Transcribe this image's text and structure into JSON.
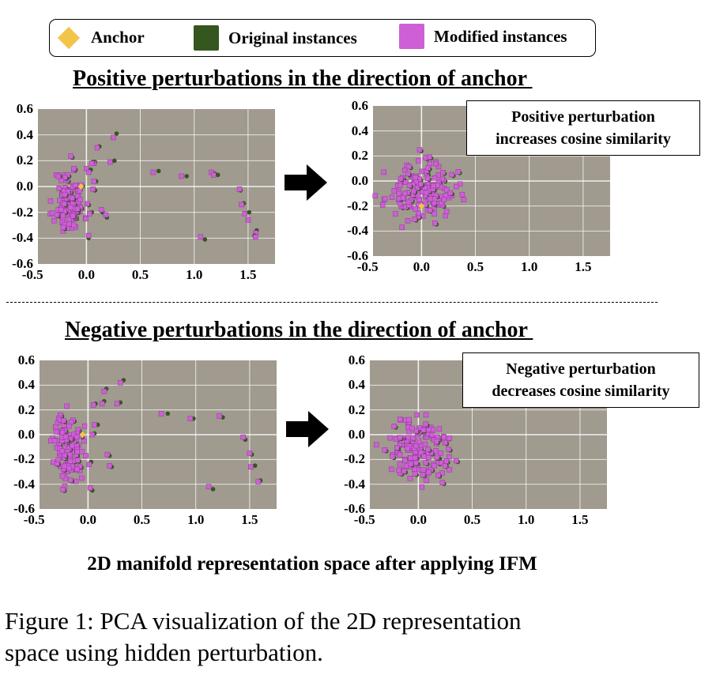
{
  "legend": {
    "anchor": "Anchor",
    "original": "Original instances",
    "modified": "Modified instances"
  },
  "colors": {
    "anchor": "#f2c54a",
    "original": "#35561f",
    "modified": "#cf5fd6",
    "plot_bg": "#a09a8f",
    "grid": "#ffffff"
  },
  "sections": {
    "positive_title": "Positive perturbations in the direction of anchor ",
    "negative_title": "Negative perturbations in the direction of anchor "
  },
  "annotations": {
    "positive": [
      "Positive perturbation",
      "increases cosine similarity"
    ],
    "negative": [
      "Negative perturbation",
      "decreases cosine similarity"
    ]
  },
  "bottom_title": "2D manifold representation space after applying IFM",
  "caption": [
    "Figure 1: PCA visualization of the 2D representation",
    "space using hidden perturbation."
  ],
  "chart_data": [
    {
      "id": "pos-before",
      "type": "scatter",
      "title": "Positive perturbations in the direction of anchor",
      "xlim": [
        -0.45,
        1.75
      ],
      "ylim": [
        -0.6,
        0.6
      ],
      "xticks": [
        -0.5,
        0.0,
        0.5,
        1.0,
        1.5
      ],
      "yticks": [
        0.6,
        0.4,
        0.2,
        0.0,
        -0.2,
        -0.4,
        -0.6
      ],
      "xtick_labels": [
        "-0.5",
        "0.0",
        "0.5",
        "1.0",
        "1.5"
      ],
      "ytick_labels": [
        "0.6",
        "0.4",
        "0.2",
        "0.0",
        "-0.2",
        "-0.4",
        "-0.6"
      ],
      "anchor": [
        -0.05,
        0.0
      ],
      "cluster": {
        "cx": -0.16,
        "cy": -0.12,
        "sx": 0.07,
        "sy": 0.13,
        "n": 110,
        "seed": 11
      },
      "pairs": [
        [
          0.25,
          0.38,
          0.28,
          0.41
        ],
        [
          0.1,
          0.3,
          0.12,
          0.31
        ],
        [
          0.22,
          0.19,
          0.26,
          0.2
        ],
        [
          0.07,
          0.18,
          0.08,
          0.19
        ],
        [
          0.62,
          0.11,
          0.67,
          0.12
        ],
        [
          0.88,
          0.08,
          0.93,
          0.08
        ],
        [
          1.16,
          0.11,
          1.19,
          0.1
        ],
        [
          1.18,
          0.09,
          1.22,
          0.09
        ],
        [
          1.42,
          -0.02,
          1.43,
          -0.03
        ],
        [
          1.44,
          -0.14,
          1.46,
          -0.13
        ],
        [
          1.47,
          -0.21,
          1.51,
          -0.2
        ],
        [
          1.5,
          -0.26,
          1.5,
          -0.26
        ],
        [
          1.57,
          -0.36,
          1.58,
          -0.34
        ],
        [
          1.57,
          -0.39,
          1.56,
          -0.38
        ],
        [
          1.06,
          -0.39,
          1.1,
          -0.41
        ],
        [
          0.02,
          -0.38,
          0.02,
          -0.4
        ],
        [
          0.05,
          0.18,
          0.06,
          0.19
        ],
        [
          0.02,
          0.11,
          0.04,
          0.13
        ],
        [
          0.07,
          0.04,
          0.09,
          0.04
        ],
        [
          0.06,
          -0.02,
          0.08,
          -0.03
        ],
        [
          0.14,
          -0.18,
          0.15,
          -0.2
        ],
        [
          0.18,
          -0.22,
          0.19,
          -0.24
        ],
        [
          0.03,
          -0.21,
          0.05,
          -0.2
        ]
      ]
    },
    {
      "id": "pos-after",
      "type": "scatter",
      "annotation": "Positive perturbation increases cosine similarity",
      "xlim": [
        -0.45,
        1.75
      ],
      "ylim": [
        -0.6,
        0.6
      ],
      "xticks": [
        -0.5,
        0.0,
        0.5,
        1.0,
        1.5
      ],
      "yticks": [
        0.6,
        0.4,
        0.2,
        0.0,
        -0.2,
        -0.4,
        -0.6
      ],
      "xtick_labels": [
        "-0.5",
        "0.0",
        "0.5",
        "1.0",
        "1.5"
      ],
      "ytick_labels": [
        "0.6",
        "0.4",
        "0.2",
        "0.0",
        "-0.2",
        "-0.4",
        "-0.6"
      ],
      "anchor": [
        0.0,
        -0.2
      ],
      "cluster": {
        "cx": -0.01,
        "cy": -0.09,
        "sx": 0.16,
        "sy": 0.11,
        "n": 150,
        "seed": 23
      },
      "pairs": []
    },
    {
      "id": "neg-before",
      "type": "scatter",
      "title": "Negative perturbations in the direction of anchor",
      "xlim": [
        -0.45,
        1.75
      ],
      "ylim": [
        -0.6,
        0.6
      ],
      "xticks": [
        -0.5,
        0.0,
        0.5,
        1.0,
        1.5
      ],
      "yticks": [
        0.6,
        0.4,
        0.2,
        0.0,
        -0.2,
        -0.4,
        -0.6
      ],
      "xtick_labels": [
        "-0.5",
        "0.0",
        "0.5",
        "1.0",
        "1.5"
      ],
      "ytick_labels": [
        "0.6",
        "0.4",
        "0.2",
        "0.0",
        "-0.2",
        "-0.4",
        "-0.6"
      ],
      "anchor": [
        -0.05,
        0.0
      ],
      "cluster": {
        "cx": -0.18,
        "cy": -0.11,
        "sx": 0.07,
        "sy": 0.14,
        "n": 110,
        "seed": 37
      },
      "pairs": [
        [
          0.3,
          0.42,
          0.33,
          0.44
        ],
        [
          0.15,
          0.35,
          0.17,
          0.37
        ],
        [
          0.27,
          0.25,
          0.3,
          0.26
        ],
        [
          0.13,
          0.25,
          0.15,
          0.27
        ],
        [
          0.68,
          0.17,
          0.74,
          0.17
        ],
        [
          0.95,
          0.13,
          0.98,
          0.13
        ],
        [
          1.22,
          0.15,
          1.25,
          0.14
        ],
        [
          1.44,
          -0.02,
          1.46,
          -0.04
        ],
        [
          1.5,
          -0.15,
          1.52,
          -0.16
        ],
        [
          1.51,
          -0.26,
          1.55,
          -0.25
        ],
        [
          1.58,
          -0.38,
          1.6,
          -0.37
        ],
        [
          1.12,
          -0.42,
          1.16,
          -0.44
        ],
        [
          0.02,
          -0.43,
          0.04,
          -0.45
        ],
        [
          0.05,
          0.24,
          0.07,
          0.25
        ],
        [
          0.06,
          0.08,
          0.09,
          0.08
        ],
        [
          0.04,
          0.0,
          0.06,
          0.01
        ],
        [
          0.18,
          -0.16,
          0.2,
          -0.17
        ],
        [
          0.2,
          -0.25,
          0.22,
          -0.26
        ],
        [
          0.01,
          -0.24,
          0.03,
          -0.22
        ]
      ]
    },
    {
      "id": "neg-after",
      "type": "scatter",
      "annotation": "Negative perturbation decreases cosine similarity",
      "xlim": [
        -0.45,
        1.75
      ],
      "ylim": [
        -0.6,
        0.6
      ],
      "xticks": [
        -0.5,
        0.0,
        0.5,
        1.0,
        1.5
      ],
      "yticks": [
        0.6,
        0.4,
        0.2,
        0.0,
        -0.2,
        -0.4,
        -0.6
      ],
      "xtick_labels": [
        "-0.5",
        "0.0",
        "0.5",
        "1.0",
        "1.5"
      ],
      "ytick_labels": [
        "0.6",
        "0.4",
        "0.2",
        "0.0",
        "-0.2",
        "-0.4",
        "-0.6"
      ],
      "cluster": {
        "cx": -0.01,
        "cy": -0.12,
        "sx": 0.15,
        "sy": 0.13,
        "n": 150,
        "seed": 51
      },
      "pairs": []
    }
  ]
}
